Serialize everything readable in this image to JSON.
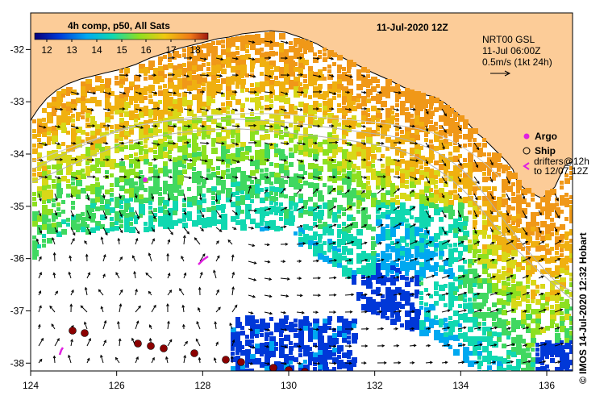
{
  "title": "11-Jul-2020 12Z",
  "product": "4h comp, p50, All Sats",
  "colorbar": {
    "ticks": [
      "12",
      "13",
      "14",
      "15",
      "16",
      "17",
      "18"
    ],
    "stops": [
      "#08007a",
      "#0038d8",
      "#00a8f0",
      "#10d8b0",
      "#8ce020",
      "#f0c810",
      "#f07818",
      "#a01810"
    ]
  },
  "current_info": [
    "NRT00 GSL",
    "11-Jul 06:00Z",
    "0.5m/s (1kt 24h)"
  ],
  "legend": {
    "argo": "Argo",
    "ship": "Ship",
    "drifters": "drifters@12h",
    "drifters_period": "to 12/07 12Z",
    "argo_color": "#e020e0",
    "ship_color": "#8b0000"
  },
  "credit": "© IMOS 14-Jul-2020 12:32 Hobart",
  "axes": {
    "x_ticks": [
      "124",
      "126",
      "128",
      "130",
      "132",
      "134",
      "136"
    ],
    "y_ticks": [
      "-32",
      "-33",
      "-34",
      "-35",
      "-36",
      "-37",
      "-38"
    ]
  },
  "colors": {
    "land": "#fccc98",
    "bathy": "#b0b0b0"
  }
}
